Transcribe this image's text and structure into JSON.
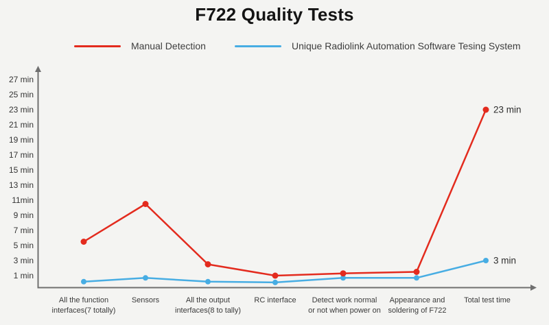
{
  "page": {
    "background": "#f4f4f2"
  },
  "chart_data": {
    "type": "line",
    "title": "F722 Quality Tests",
    "xlabel": "",
    "ylabel": "",
    "y_unit": "min",
    "grid": false,
    "legend_position": "top-left",
    "ylim": [
      0,
      28
    ],
    "yticks": [
      "27 min",
      "25 min",
      "23 min",
      "21 min",
      "19 min",
      "17 min",
      "15 min",
      "13 min",
      "11min",
      "9 min",
      "7 min",
      "5 min",
      "3 min",
      "1 min"
    ],
    "categories": [
      "All the function\ninterfaces(7 totally)",
      "Sensors",
      "All the output\ninterfaces(8 to tally)",
      "RC interface",
      "Detect work normal\nor not when power on",
      "Appearance and\nsoldering of F722",
      "Total test time"
    ],
    "series": [
      {
        "name": "Manual Detection",
        "color": "#e32b1e",
        "values": [
          5.5,
          10.5,
          2.5,
          1,
          1.3,
          1.5,
          23
        ],
        "end_label": "23 min"
      },
      {
        "name": "Unique Radiolink Automation Software Tesing System",
        "color": "#47ade3",
        "values": [
          0.2,
          0.7,
          0.2,
          0.1,
          0.7,
          0.7,
          3
        ],
        "end_label": "3 min"
      }
    ]
  }
}
